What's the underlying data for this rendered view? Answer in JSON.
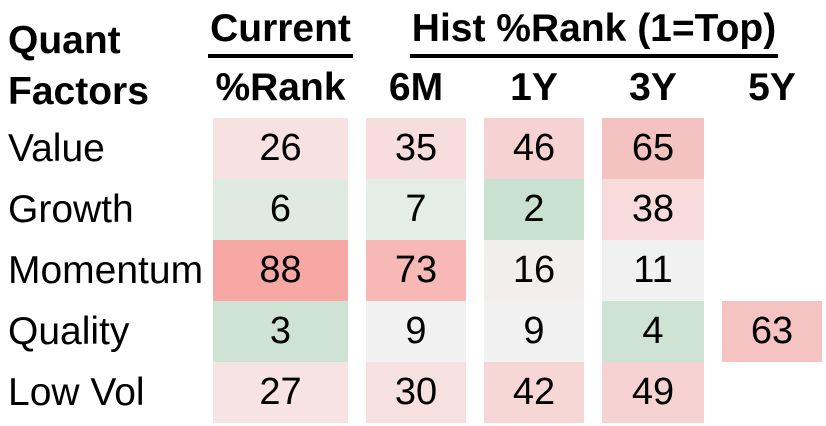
{
  "header": {
    "corner_line1": "Quant",
    "corner_line2": "Factors",
    "group_current": "Current",
    "group_hist": "Hist %Rank (1=Top)",
    "col_current": "%Rank",
    "col_6m": "6M",
    "col_1y": "1Y",
    "col_3y": "3Y",
    "col_5y": "5Y"
  },
  "rows": [
    {
      "label": "Value",
      "cells": [
        {
          "v": "26",
          "bg": "#f7e1e1"
        },
        {
          "v": "35",
          "bg": "#f8dddd"
        },
        {
          "v": "46",
          "bg": "#f7d2d2"
        },
        {
          "v": "65",
          "bg": "#f4c3c1"
        },
        {
          "v": "",
          "bg": ""
        }
      ]
    },
    {
      "label": "Growth",
      "cells": [
        {
          "v": "6",
          "bg": "#dfebe2"
        },
        {
          "v": "7",
          "bg": "#e4eee6"
        },
        {
          "v": "2",
          "bg": "#c9e1cf"
        },
        {
          "v": "38",
          "bg": "#f8dcdc"
        },
        {
          "v": "",
          "bg": ""
        }
      ]
    },
    {
      "label": "Momentum",
      "cells": [
        {
          "v": "88",
          "bg": "#f7a8a4"
        },
        {
          "v": "73",
          "bg": "#f8b9b6"
        },
        {
          "v": "16",
          "bg": "#f3eeee"
        },
        {
          "v": "11",
          "bg": "#f1f1f2"
        },
        {
          "v": "",
          "bg": ""
        }
      ]
    },
    {
      "label": "Quality",
      "cells": [
        {
          "v": "3",
          "bg": "#cfe3d4"
        },
        {
          "v": "9",
          "bg": "#f2f1f1"
        },
        {
          "v": "9",
          "bg": "#f1f1f1"
        },
        {
          "v": "4",
          "bg": "#cee3d3"
        },
        {
          "v": "63",
          "bg": "#f5c3c2"
        }
      ]
    },
    {
      "label": "Low Vol",
      "cells": [
        {
          "v": "27",
          "bg": "#f7e3e3"
        },
        {
          "v": "30",
          "bg": "#f7e1e0"
        },
        {
          "v": "42",
          "bg": "#f7d7d6"
        },
        {
          "v": "49",
          "bg": "#f6d3d2"
        },
        {
          "v": "",
          "bg": ""
        }
      ]
    }
  ],
  "colors": {
    "text": "#000000",
    "background": "#ffffff",
    "green_strong": "#c9e1cf",
    "red_strong": "#f7a8a4",
    "neutral": "#f1f1f2"
  },
  "chart_data": {
    "type": "heatmap",
    "title": "Quant Factors",
    "column_group_labels": [
      "Current",
      "Hist %Rank (1=Top)"
    ],
    "columns": [
      "Current %Rank",
      "6M",
      "1Y",
      "3Y",
      "5Y"
    ],
    "row_labels": [
      "Value",
      "Growth",
      "Momentum",
      "Quality",
      "Low Vol"
    ],
    "values": [
      [
        26,
        35,
        46,
        65,
        null
      ],
      [
        6,
        7,
        2,
        38,
        null
      ],
      [
        88,
        73,
        16,
        11,
        null
      ],
      [
        3,
        9,
        9,
        4,
        63
      ],
      [
        27,
        30,
        42,
        49,
        null
      ]
    ],
    "value_range": [
      1,
      100
    ],
    "color_scale": "green = low percentile (1 = top rank), white = neutral (~10-15), red = high percentile"
  }
}
